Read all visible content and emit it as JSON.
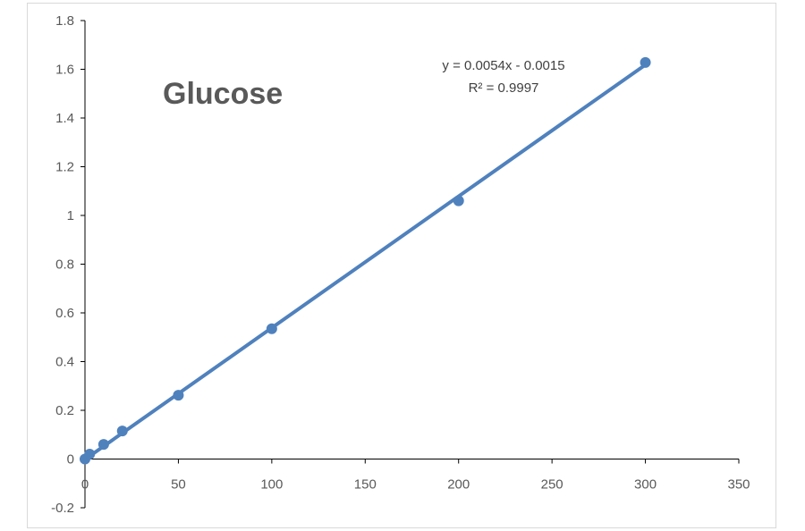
{
  "chart_data": {
    "type": "scatter",
    "title": "Glucose",
    "xlabel": "",
    "ylabel": "",
    "xlim": [
      0,
      350
    ],
    "ylim": [
      -0.2,
      1.8
    ],
    "x_ticks": [
      0,
      50,
      100,
      150,
      200,
      250,
      300,
      350
    ],
    "y_ticks": [
      -0.2,
      0,
      0.2,
      0.4,
      0.6,
      0.8,
      1,
      1.2,
      1.4,
      1.6,
      1.8
    ],
    "y_tick_labels": [
      "-0.2",
      "0",
      "0.2",
      "0.4",
      "0.6",
      "0.8",
      "1",
      "1.2",
      "1.4",
      "1.6",
      "1.8"
    ],
    "grid": false,
    "legend": "none",
    "series": [
      {
        "x": [
          0,
          2.5,
          10,
          20,
          50,
          100,
          200,
          300
        ],
        "y": [
          0.0,
          0.02,
          0.06,
          0.115,
          0.262,
          0.535,
          1.06,
          1.628
        ],
        "color": "#4f81bd"
      }
    ],
    "trendline": {
      "type": "linear",
      "slope": 0.0054,
      "intercept": -0.0015,
      "x_range": [
        0,
        300
      ],
      "color": "#4f81bd"
    },
    "annotations": {
      "equation": "y = 0.0054x - 0.0015",
      "r_squared": "R² = 0.9997"
    }
  }
}
